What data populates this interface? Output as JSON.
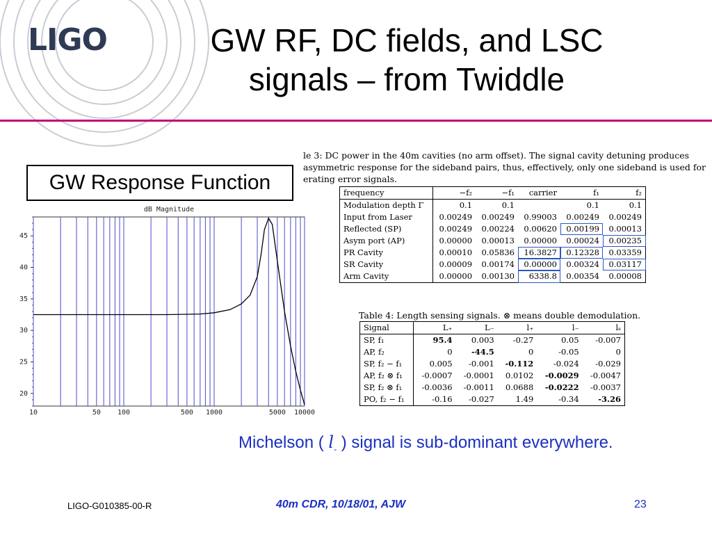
{
  "header": {
    "logo_text": "LIGO",
    "title_line1": "GW RF, DC fields, and LSC",
    "title_line2": "signals – from Twiddle"
  },
  "left_panel": {
    "box_label": "GW Response Function"
  },
  "chart_data": {
    "type": "line",
    "title": "dB Magnitude",
    "xlabel": "",
    "ylabel": "",
    "x_scale": "log",
    "xlim": [
      10,
      10000
    ],
    "ylim": [
      18,
      48
    ],
    "x_ticks": [
      10,
      50,
      100,
      500,
      1000,
      5000,
      10000
    ],
    "x_tick_labels": [
      "10",
      "50",
      "100",
      "500",
      "1000",
      "5000",
      "10000"
    ],
    "y_ticks": [
      20,
      25,
      30,
      35,
      40,
      45
    ],
    "y_tick_labels": [
      "20",
      "25",
      "30",
      "35",
      "40",
      "45"
    ],
    "grid": "vertical",
    "series": [
      {
        "color": "#000000",
        "x": [
          10,
          30,
          100,
          300,
          700,
          1000,
          1500,
          2000,
          2500,
          3000,
          3300,
          3600,
          4000,
          4400,
          5000,
          6000,
          7000,
          8000,
          9000,
          10000
        ],
        "y": [
          32.5,
          32.5,
          32.5,
          32.5,
          32.6,
          32.8,
          33.3,
          34.2,
          35.6,
          38.5,
          42.0,
          46.0,
          47.8,
          46.8,
          41.0,
          33.0,
          27.5,
          23.5,
          20.5,
          18.2
        ]
      }
    ]
  },
  "table3": {
    "caption_lines": [
      "le 3:  DC power in the 40m cavities (no arm offset).  The signal cavity detuning produces",
      "asymmetric response for the sideband pairs, thus, effectively, only one sideband is used for",
      "erating error signals."
    ],
    "headers": [
      "frequency",
      "−f₂",
      "−f₁",
      "carrier",
      "f₁",
      "f₂"
    ],
    "rows": [
      [
        "Modulation depth Γ",
        "0.1",
        "0.1",
        "",
        "0.1",
        "0.1"
      ],
      [
        "Input from Laser",
        "0.00249",
        "0.00249",
        "0.99003",
        "0.00249",
        "0.00249"
      ],
      [
        "Reflected (SP)",
        "0.00249",
        "0.00224",
        "0.00620",
        "0.00199",
        "0.00013"
      ],
      [
        "Asym port (AP)",
        "0.00000",
        "0.00013",
        "0.00000",
        "0.00024",
        "0.00235"
      ],
      [
        "PR Cavity",
        "0.00010",
        "0.05836",
        "16.3827",
        "0.12328",
        "0.03359"
      ],
      [
        "SR Cavity",
        "0.00009",
        "0.00174",
        "0.00000",
        "0.00324",
        "0.03117"
      ],
      [
        "Arm Cavity",
        "0.00000",
        "0.00130",
        "6338.8",
        "0.00354",
        "0.00008"
      ]
    ]
  },
  "table4": {
    "caption": "Table 4: Length sensing signals. ⊗ means double demodulation.",
    "headers": [
      "Signal",
      "L₊",
      "L₋",
      "l₊",
      "l₋",
      "lₛ"
    ],
    "rows": [
      [
        "SP, f₁",
        "95.4",
        "0.003",
        "-0.27",
        "0.05",
        "-0.007"
      ],
      [
        "AP, f₂",
        "0",
        "-44.5",
        "0",
        "-0.05",
        "0"
      ],
      [
        "SP, f₂ − f₁",
        "0.005",
        "-0.001",
        "-0.112",
        "-0.024",
        "-0.029"
      ],
      [
        "AP, f₂ ⊗ f₁",
        "-0.0007",
        "-0.0001",
        "0.0102",
        "-0.0029",
        "-0.0047"
      ],
      [
        "SP, f₂ ⊗ f₁",
        "-0.0036",
        "-0.0011",
        "0.0688",
        "-0.0222",
        "-0.0037"
      ],
      [
        "PO, f₂ − f₁",
        "-0.16",
        "-0.027",
        "1.49",
        "-0.34",
        "-3.26"
      ]
    ]
  },
  "note": {
    "prefix": "Michelson (",
    "symbol": "l",
    "subscript": "-",
    "suffix": ") signal is sub-dominant everywhere."
  },
  "footer": {
    "doc_id": "LIGO-G010385-00-R",
    "center": "40m CDR, 10/18/01, AJW",
    "page": "23"
  },
  "colors": {
    "title_rule": "#c40078",
    "accent_blue": "#1a2fbf",
    "highlight_box": "#2a56c6",
    "logo": "#2f3b55"
  }
}
